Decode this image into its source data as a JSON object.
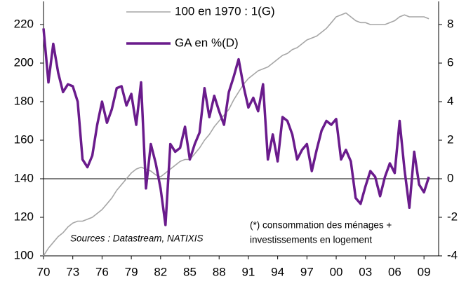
{
  "chart_data": {
    "type": "line",
    "x": [
      1970,
      1970.5,
      1971,
      1971.5,
      1972,
      1972.5,
      1973,
      1973.5,
      1974,
      1974.5,
      1975,
      1975.5,
      1976,
      1976.5,
      1977,
      1977.5,
      1978,
      1978.5,
      1979,
      1979.5,
      1980,
      1980.5,
      1981,
      1981.5,
      1982,
      1982.5,
      1983,
      1983.5,
      1984,
      1984.5,
      1985,
      1985.5,
      1986,
      1986.5,
      1987,
      1987.5,
      1988,
      1988.5,
      1989,
      1989.5,
      1990,
      1990.5,
      1991,
      1991.5,
      1992,
      1992.5,
      1993,
      1993.5,
      1994,
      1994.5,
      1995,
      1995.5,
      1996,
      1996.5,
      1997,
      1997.5,
      1998,
      1998.5,
      1999,
      1999.5,
      2000,
      2000.5,
      2001,
      2001.5,
      2002,
      2002.5,
      2003,
      2003.5,
      2004,
      2004.5,
      2005,
      2005.5,
      2006,
      2006.5,
      2007,
      2007.5,
      2008,
      2008.5,
      2009,
      2009.5
    ],
    "series": [
      {
        "name": "100 en 1970 : 1(G)",
        "color": "#a6a6a6",
        "axis": "y",
        "values": [
          100,
          104,
          107,
          110,
          112,
          115,
          117,
          118,
          118,
          119,
          120,
          122,
          124,
          127,
          130,
          134,
          137,
          140,
          143,
          145,
          146,
          145,
          144,
          142,
          141,
          143,
          145,
          147,
          149,
          150,
          150,
          153,
          156,
          160,
          163,
          167,
          170,
          173,
          176,
          181,
          185,
          189,
          192,
          194,
          196,
          197,
          198,
          200,
          202,
          204,
          205,
          207,
          208,
          210,
          212,
          213,
          214,
          216,
          218,
          221,
          224,
          225,
          226,
          224,
          222,
          221,
          221,
          220,
          220,
          220,
          220,
          221,
          222,
          224,
          225,
          224,
          224,
          224,
          224,
          223
        ]
      },
      {
        "name": "GA en %(D)",
        "color": "#6a1b8c",
        "axis": "y2",
        "values": [
          7.8,
          5.0,
          7.0,
          5.5,
          4.5,
          4.9,
          4.8,
          4.0,
          1.0,
          0.6,
          1.2,
          2.8,
          4.0,
          2.9,
          3.6,
          4.7,
          4.8,
          3.8,
          4.4,
          2.8,
          5.0,
          -0.5,
          1.8,
          0.8,
          -0.5,
          -2.4,
          1.8,
          1.4,
          1.6,
          2.7,
          1.0,
          1.8,
          2.4,
          4.7,
          3.2,
          4.3,
          3.5,
          2.8,
          4.5,
          5.3,
          6.2,
          4.8,
          3.7,
          4.2,
          3.5,
          4.9,
          1.0,
          2.3,
          0.9,
          3.2,
          3.0,
          2.3,
          1.0,
          1.5,
          1.8,
          0.4,
          1.5,
          2.5,
          3.0,
          2.8,
          3.1,
          1.0,
          1.5,
          0.9,
          -1.0,
          -1.3,
          -0.4,
          0.4,
          0.1,
          -0.9,
          0.1,
          0.8,
          0.3,
          3.0,
          0.5,
          -1.5,
          1.4,
          -0.3,
          -0.7,
          0.1
        ]
      }
    ],
    "xlim": [
      1970,
      2010.5
    ],
    "xticks": [
      {
        "value": 1970,
        "label": "70"
      },
      {
        "value": 1973,
        "label": "73"
      },
      {
        "value": 1976,
        "label": "76"
      },
      {
        "value": 1979,
        "label": "79"
      },
      {
        "value": 1982,
        "label": "82"
      },
      {
        "value": 1985,
        "label": "85"
      },
      {
        "value": 1988,
        "label": "88"
      },
      {
        "value": 1991,
        "label": "91"
      },
      {
        "value": 1994,
        "label": "94"
      },
      {
        "value": 1997,
        "label": "97"
      },
      {
        "value": 2000,
        "label": "00"
      },
      {
        "value": 2003,
        "label": "03"
      },
      {
        "value": 2006,
        "label": "06"
      },
      {
        "value": 2009,
        "label": "09"
      }
    ],
    "ylim": [
      100,
      232
    ],
    "yticks": [
      100,
      120,
      140,
      160,
      180,
      200,
      220
    ],
    "y2lim": [
      -4,
      9.2
    ],
    "y2ticks": [
      -4,
      -2,
      0,
      2,
      4,
      6,
      8
    ],
    "zero_line": true,
    "annotations": [
      "Sources : Datastream, NATIXIS",
      "(*) consommation des ménages +",
      "investissements en logement"
    ]
  }
}
